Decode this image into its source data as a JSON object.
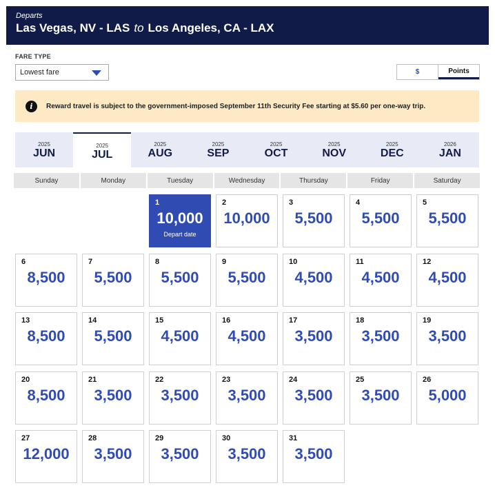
{
  "header": {
    "label": "Departs",
    "origin": "Las Vegas, NV - LAS",
    "connector": "to",
    "destination": "Los Angeles, CA - LAX"
  },
  "fare": {
    "label": "FARE TYPE",
    "selected": "Lowest fare"
  },
  "currency_toggle": {
    "dollar_label": "$",
    "points_label": "Points",
    "active": "Points"
  },
  "notice": {
    "icon": "info-icon",
    "text": "Reward travel is subject to the government-imposed September 11th Security Fee starting at $5.60 per one-way trip."
  },
  "months": [
    {
      "year": "2025",
      "month": "JUN",
      "active": false
    },
    {
      "year": "2025",
      "month": "JUL",
      "active": true
    },
    {
      "year": "2025",
      "month": "AUG",
      "active": false
    },
    {
      "year": "2025",
      "month": "SEP",
      "active": false
    },
    {
      "year": "2025",
      "month": "OCT",
      "active": false
    },
    {
      "year": "2025",
      "month": "NOV",
      "active": false
    },
    {
      "year": "2025",
      "month": "DEC",
      "active": false
    },
    {
      "year": "2026",
      "month": "JAN",
      "active": false
    }
  ],
  "weekdays": [
    "Sunday",
    "Monday",
    "Tuesday",
    "Wednesday",
    "Thursday",
    "Friday",
    "Saturday"
  ],
  "calendar": {
    "first_weekday": 2,
    "selected_day": 1,
    "selected_label": "Depart date",
    "days": [
      {
        "day": "1",
        "points": "10,000"
      },
      {
        "day": "2",
        "points": "10,000"
      },
      {
        "day": "3",
        "points": "5,500"
      },
      {
        "day": "4",
        "points": "5,500"
      },
      {
        "day": "5",
        "points": "5,500"
      },
      {
        "day": "6",
        "points": "8,500"
      },
      {
        "day": "7",
        "points": "5,500"
      },
      {
        "day": "8",
        "points": "5,500"
      },
      {
        "day": "9",
        "points": "5,500"
      },
      {
        "day": "10",
        "points": "4,500"
      },
      {
        "day": "11",
        "points": "4,500"
      },
      {
        "day": "12",
        "points": "4,500"
      },
      {
        "day": "13",
        "points": "8,500"
      },
      {
        "day": "14",
        "points": "5,500"
      },
      {
        "day": "15",
        "points": "4,500"
      },
      {
        "day": "16",
        "points": "4,500"
      },
      {
        "day": "17",
        "points": "3,500"
      },
      {
        "day": "18",
        "points": "3,500"
      },
      {
        "day": "19",
        "points": "3,500"
      },
      {
        "day": "20",
        "points": "8,500"
      },
      {
        "day": "21",
        "points": "3,500"
      },
      {
        "day": "22",
        "points": "3,500"
      },
      {
        "day": "23",
        "points": "3,500"
      },
      {
        "day": "24",
        "points": "3,500"
      },
      {
        "day": "25",
        "points": "3,500"
      },
      {
        "day": "26",
        "points": "5,000"
      },
      {
        "day": "27",
        "points": "12,000"
      },
      {
        "day": "28",
        "points": "3,500"
      },
      {
        "day": "29",
        "points": "3,500"
      },
      {
        "day": "30",
        "points": "3,500"
      },
      {
        "day": "31",
        "points": "3,500"
      }
    ]
  },
  "colors": {
    "navy": "#111b47",
    "accent_blue": "#304cb2",
    "notice_bg": "#fde9c3"
  }
}
